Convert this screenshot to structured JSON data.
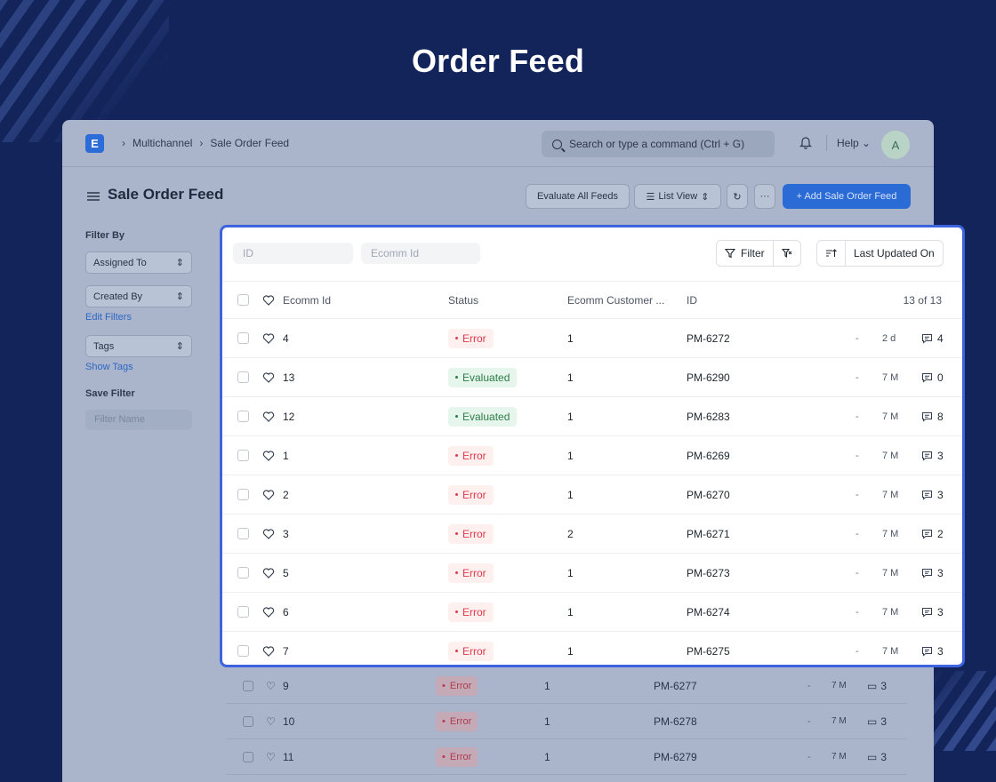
{
  "page_title": "Order Feed",
  "colors": {
    "background": "#13245a",
    "accent": "#3d63e0",
    "primary_button": "#2a6bd6",
    "error": "#e0384a",
    "success": "#2a7d46"
  },
  "app": {
    "logo_letter": "E",
    "breadcrumbs": [
      "Multichannel",
      "Sale Order Feed"
    ],
    "search_placeholder": "Search or type a command (Ctrl + G)",
    "help_label": "Help",
    "avatar_letter": "A",
    "title": "Sale Order Feed",
    "buttons": {
      "evaluate": "Evaluate All Feeds",
      "list_view": "List View",
      "more": "···",
      "add": "+ Add Sale Order Feed"
    },
    "sidebar": {
      "filter_by": "Filter By",
      "assigned_to": "Assigned To",
      "created_by": "Created By",
      "edit_filters": "Edit Filters",
      "tags": "Tags",
      "show_tags": "Show Tags",
      "save_filter": "Save Filter",
      "filter_name_placeholder": "Filter Name"
    },
    "background_rows": [
      {
        "ecomm_id": "9",
        "status": "Error",
        "customer": "1",
        "id": "PM-6277",
        "dash": "-",
        "modified": "7 M",
        "comments": "3"
      },
      {
        "ecomm_id": "10",
        "status": "Error",
        "customer": "1",
        "id": "PM-6278",
        "dash": "-",
        "modified": "7 M",
        "comments": "3"
      },
      {
        "ecomm_id": "11",
        "status": "Error",
        "customer": "1",
        "id": "PM-6279",
        "dash": "-",
        "modified": "7 M",
        "comments": "3"
      }
    ]
  },
  "list": {
    "filters": {
      "id_placeholder": "ID",
      "ecomm_id_placeholder": "Ecomm Id"
    },
    "filter_label": "Filter",
    "sort_label": "Last Updated On",
    "columns": {
      "ecomm_id": "Ecomm Id",
      "status": "Status",
      "customer": "Ecomm Customer ...",
      "id": "ID"
    },
    "count_label": "13 of 13",
    "rows": [
      {
        "ecomm_id": "4",
        "status": "Error",
        "status_kind": "err",
        "customer": "1",
        "id": "PM-6272",
        "dash": "-",
        "modified": "2 d",
        "comments": "4"
      },
      {
        "ecomm_id": "13",
        "status": "Evaluated",
        "status_kind": "ok",
        "customer": "1",
        "id": "PM-6290",
        "dash": "-",
        "modified": "7 M",
        "comments": "0"
      },
      {
        "ecomm_id": "12",
        "status": "Evaluated",
        "status_kind": "ok",
        "customer": "1",
        "id": "PM-6283",
        "dash": "-",
        "modified": "7 M",
        "comments": "8"
      },
      {
        "ecomm_id": "1",
        "status": "Error",
        "status_kind": "err",
        "customer": "1",
        "id": "PM-6269",
        "dash": "-",
        "modified": "7 M",
        "comments": "3"
      },
      {
        "ecomm_id": "2",
        "status": "Error",
        "status_kind": "err",
        "customer": "1",
        "id": "PM-6270",
        "dash": "-",
        "modified": "7 M",
        "comments": "3"
      },
      {
        "ecomm_id": "3",
        "status": "Error",
        "status_kind": "err",
        "customer": "2",
        "id": "PM-6271",
        "dash": "-",
        "modified": "7 M",
        "comments": "2"
      },
      {
        "ecomm_id": "5",
        "status": "Error",
        "status_kind": "err",
        "customer": "1",
        "id": "PM-6273",
        "dash": "-",
        "modified": "7 M",
        "comments": "3"
      },
      {
        "ecomm_id": "6",
        "status": "Error",
        "status_kind": "err",
        "customer": "1",
        "id": "PM-6274",
        "dash": "-",
        "modified": "7 M",
        "comments": "3"
      },
      {
        "ecomm_id": "7",
        "status": "Error",
        "status_kind": "err",
        "customer": "1",
        "id": "PM-6275",
        "dash": "-",
        "modified": "7 M",
        "comments": "3"
      }
    ]
  }
}
